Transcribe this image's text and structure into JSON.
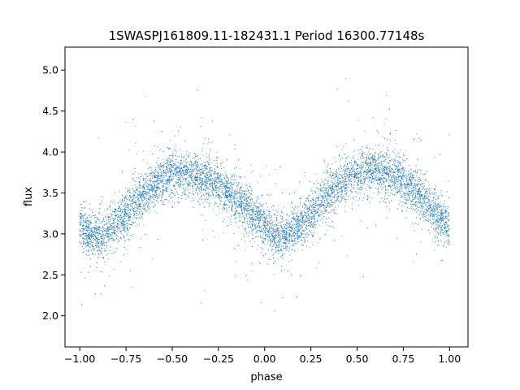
{
  "chart_data": {
    "type": "scatter",
    "title": "1SWASPJ161809.11-182431.1 Period 16300.77148s",
    "xlabel": "phase",
    "ylabel": "flux",
    "xlim": [
      -1.08,
      1.1
    ],
    "ylim": [
      1.62,
      5.28
    ],
    "x_ticks": [
      -1.0,
      -0.75,
      -0.5,
      -0.25,
      0.0,
      0.25,
      0.5,
      0.75,
      1.0
    ],
    "x_tick_labels": [
      "−1.00",
      "−0.75",
      "−0.50",
      "−0.25",
      "0.00",
      "0.25",
      "0.50",
      "0.75",
      "1.00"
    ],
    "y_ticks": [
      2.0,
      2.5,
      3.0,
      3.5,
      4.0,
      4.5,
      5.0
    ],
    "y_tick_labels": [
      "2.0",
      "2.5",
      "3.0",
      "3.5",
      "4.0",
      "4.5",
      "5.0"
    ],
    "grid": false,
    "marker_color": "#1f77b4",
    "series": [
      {
        "x": [
          -1.0,
          -0.95,
          -0.9,
          -0.85,
          -0.8,
          -0.75,
          -0.7,
          -0.65,
          -0.6,
          -0.55,
          -0.5,
          -0.45,
          -0.4,
          -0.35,
          -0.3,
          -0.25,
          -0.2,
          -0.15,
          -0.1,
          -0.05,
          0.0,
          0.05,
          0.1,
          0.15,
          0.2,
          0.25,
          0.3,
          0.35,
          0.4,
          0.45,
          0.5,
          0.55,
          0.6,
          0.65,
          0.7,
          0.75,
          0.8,
          0.85,
          0.9,
          0.95,
          1.0
        ],
        "y": [
          3.1,
          3.0,
          2.97,
          3.02,
          3.12,
          3.25,
          3.38,
          3.5,
          3.6,
          3.67,
          3.72,
          3.74,
          3.73,
          3.7,
          3.65,
          3.58,
          3.5,
          3.42,
          3.33,
          3.2,
          3.08,
          2.98,
          2.95,
          3.02,
          3.12,
          3.25,
          3.38,
          3.5,
          3.6,
          3.67,
          3.72,
          3.75,
          3.76,
          3.74,
          3.7,
          3.63,
          3.55,
          3.45,
          3.33,
          3.2,
          3.1
        ]
      }
    ]
  }
}
